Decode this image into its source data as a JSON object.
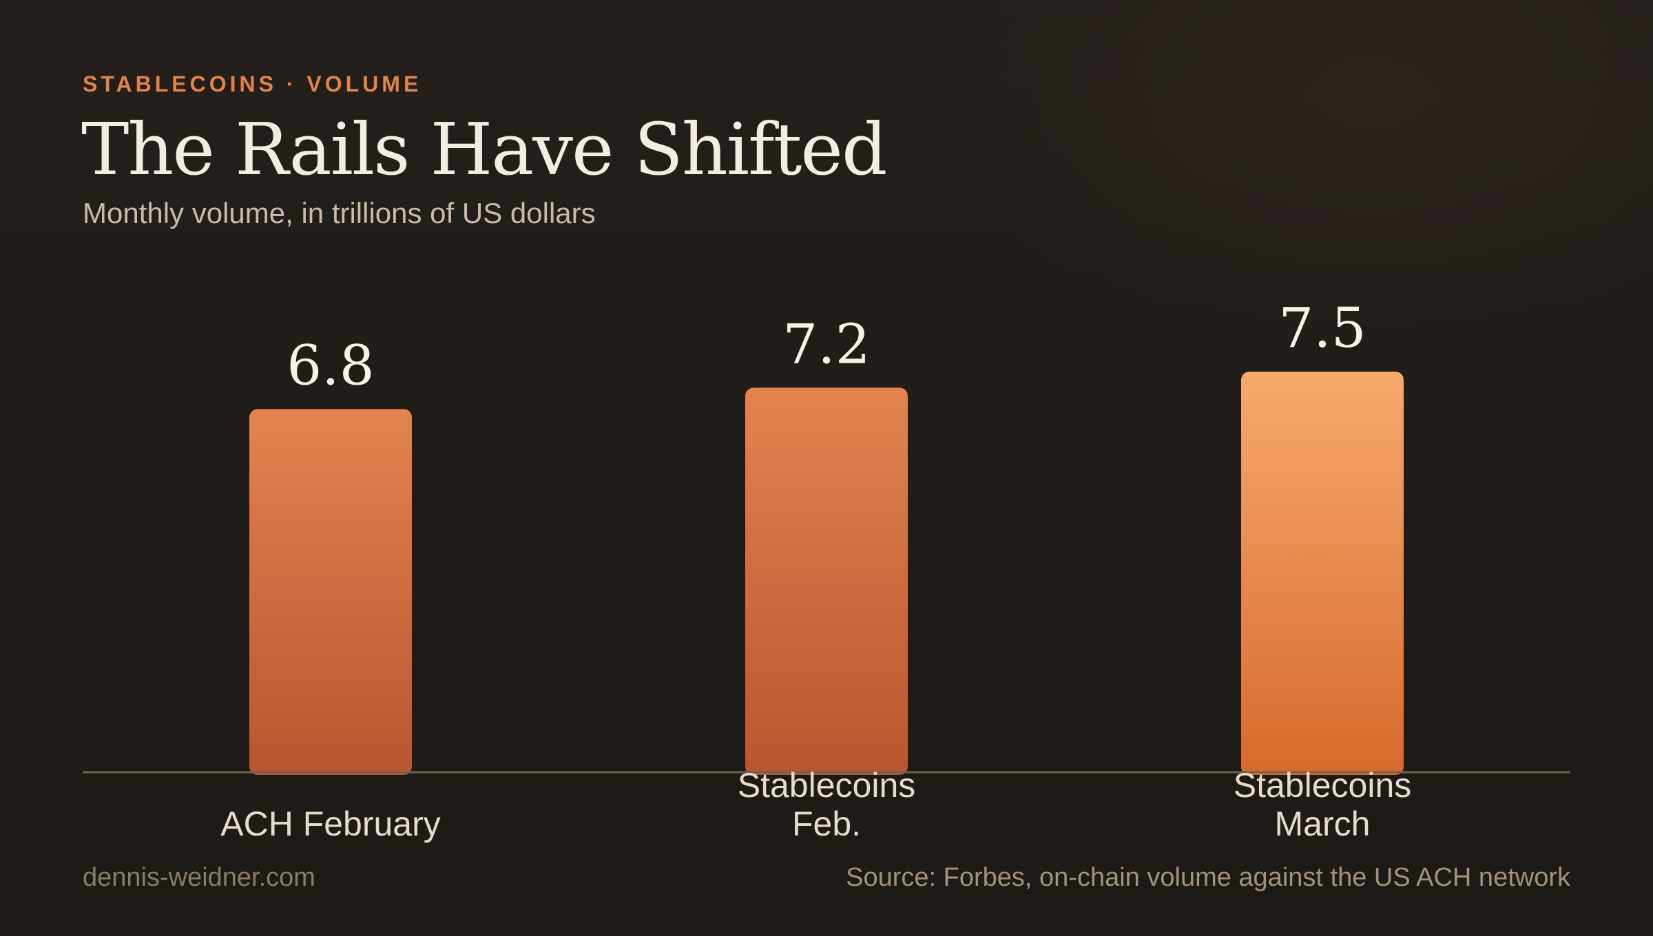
{
  "header": {
    "eyebrow": "STABLECOINS · VOLUME",
    "title": "The Rails Have Shifted",
    "subtitle": "Monthly volume, in trillions of US dollars"
  },
  "footer": {
    "site": "dennis-weidner.com",
    "source": "Source: Forbes, on-chain volume against the US ACH network"
  },
  "chart_data": {
    "type": "bar",
    "categories": [
      [
        "ACH February"
      ],
      [
        "Stablecoins",
        "Feb."
      ],
      [
        "Stablecoins",
        "March"
      ]
    ],
    "values": [
      6.8,
      7.2,
      7.5
    ],
    "value_labels": [
      "6.8",
      "7.2",
      "7.5"
    ],
    "title": "The Rails Have Shifted",
    "subtitle": "Monthly volume, in trillions of US dollars",
    "xlabel": "",
    "ylabel": "",
    "ylim": [
      0,
      7.5
    ],
    "grid": false,
    "colors": {
      "bar_default_top": "#e2844f",
      "bar_default_bottom": "#b8552f",
      "bar_highlight_top": "#f5aa6c",
      "bar_highlight_bottom": "#d8692c",
      "baseline": "#6d6355",
      "value_label": "#f8f1e6",
      "category_label": "#e6dccd"
    },
    "highlight_index": 2
  }
}
